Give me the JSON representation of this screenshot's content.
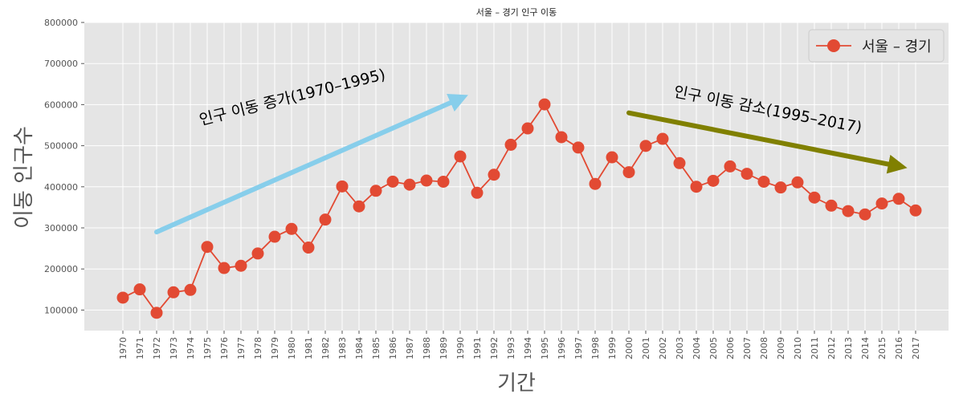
{
  "chart_data": {
    "type": "line",
    "title": "서울 – 경기 인구 이동",
    "xlabel": "기간",
    "ylabel": "이동 인구수",
    "ylim": [
      50000,
      800000
    ],
    "yticks": [
      100000,
      200000,
      300000,
      400000,
      500000,
      600000,
      700000,
      800000
    ],
    "grid": true,
    "legend_position": "top-right",
    "x_tick_rotation": 90,
    "categories": [
      "1970",
      "1971",
      "1972",
      "1973",
      "1974",
      "1975",
      "1976",
      "1977",
      "1978",
      "1979",
      "1980",
      "1981",
      "1982",
      "1983",
      "1984",
      "1985",
      "1986",
      "1987",
      "1988",
      "1989",
      "1990",
      "1991",
      "1992",
      "1993",
      "1994",
      "1995",
      "1996",
      "1997",
      "1998",
      "1999",
      "2000",
      "2001",
      "2002",
      "2003",
      "2004",
      "2005",
      "2006",
      "2007",
      "2008",
      "2009",
      "2010",
      "2011",
      "2012",
      "2013",
      "2014",
      "2015",
      "2016",
      "2017"
    ],
    "series": [
      {
        "name": "서울 – 경기",
        "color": "#e24a33",
        "marker": "circle",
        "values": [
          130149,
          150313,
          93333,
          143234,
          149045,
          253705,
          202276,
          207722,
          237684,
          278411,
          297539,
          252073,
          320174,
          400875,
          352238,
          390265,
          412535,
          405220,
          415174,
          412379,
          473889,
          385388,
          429403,
          502347,
          542136,
          600640,
          520804,
          495454,
          407050,
          471841,
          435573,
          499575,
          516765,
          457656,
          400206,
          414621,
          449632,
          431637,
          412408,
          398282,
          410735,
          373771,
          354135,
          340801,
          332785,
          359337,
          370760,
          342433
        ]
      }
    ],
    "annotations": [
      {
        "text": "인구 이동 증가(1970–1995)",
        "arrow": {
          "from": [
            "1972",
            290000
          ],
          "to": [
            "1990",
            615000
          ],
          "color": "#87ceeb"
        },
        "text_pos": [
          "1975",
          550000
        ],
        "rotation": -14
      },
      {
        "text": "인구 이동 감소(1995–2017)",
        "arrow": {
          "from": [
            "2000",
            580000
          ],
          "to": [
            "2016",
            450000
          ],
          "color": "#808000"
        },
        "text_pos": [
          "2003",
          620000
        ],
        "rotation": 11
      }
    ],
    "style": {
      "background": "#e5e5e5",
      "grid_color": "#ffffff"
    }
  }
}
